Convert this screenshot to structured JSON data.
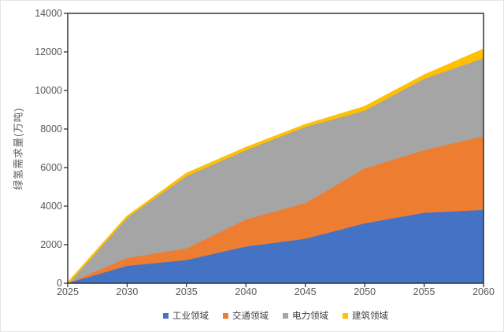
{
  "chart_data": {
    "type": "area",
    "stacked": true,
    "title": "",
    "xlabel": "",
    "ylabel": "绿氢需求量(万吨)",
    "x": [
      2025,
      2030,
      2035,
      2040,
      2045,
      2050,
      2055,
      2060
    ],
    "yticks": [
      0,
      2000,
      4000,
      6000,
      8000,
      10000,
      12000,
      14000
    ],
    "ylim": [
      0,
      14000
    ],
    "grid": false,
    "legend_position": "bottom",
    "series": [
      {
        "key": "industrial",
        "name": "工业领域",
        "color": "#4472C4",
        "values": [
          0,
          900,
          1200,
          1900,
          2300,
          3100,
          3650,
          3800
        ]
      },
      {
        "key": "transport",
        "name": "交通领域",
        "color": "#ED7D31",
        "values": [
          0,
          400,
          600,
          1400,
          1850,
          2850,
          3250,
          3820
        ]
      },
      {
        "key": "power",
        "name": "电力领域",
        "color": "#A5A5A5",
        "values": [
          0,
          2100,
          3750,
          3600,
          3950,
          3000,
          3700,
          4050
        ]
      },
      {
        "key": "building",
        "name": "建筑领域",
        "color": "#FFC000",
        "values": [
          0,
          50,
          130,
          120,
          110,
          190,
          180,
          450
        ]
      }
    ],
    "cumulative_totals": [
      0,
      3450,
      5680,
      7020,
      8210,
      9140,
      10780,
      12120
    ],
    "axis_color": "#262626",
    "label_color": "#595959"
  }
}
